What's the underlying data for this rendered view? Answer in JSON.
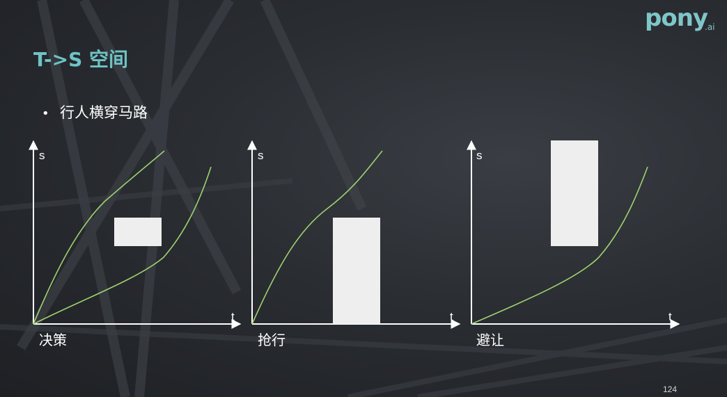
{
  "logo": {
    "main": "pony",
    "sub": ".ai"
  },
  "title": "T->S 空间",
  "bullet": {
    "symbol": "•",
    "text": "行人横穿马路"
  },
  "panels": [
    {
      "caption": "决策",
      "y_axis_label": "s",
      "x_axis_label": "t"
    },
    {
      "caption": "抢行",
      "y_axis_label": "s",
      "x_axis_label": "t"
    },
    {
      "caption": "避让",
      "y_axis_label": "s",
      "x_axis_label": "t"
    }
  ],
  "colors": {
    "title": "#6ec3c5",
    "curve": "#9fd26f",
    "obstacle": "#eeeeee",
    "axis": "#ffffff"
  },
  "page_number": "124"
}
